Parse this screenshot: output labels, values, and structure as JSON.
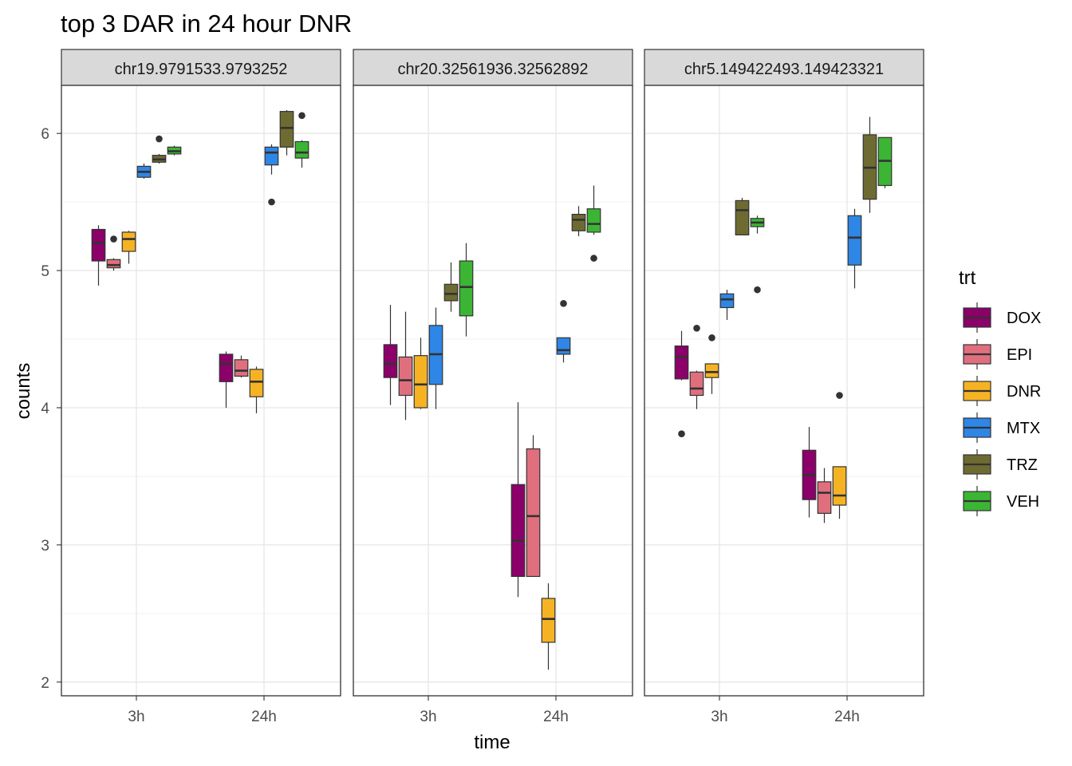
{
  "chart_data": {
    "type": "boxplot",
    "title": "top 3 DAR in 24 hour DNR",
    "xlabel": "time",
    "ylabel": "counts",
    "ylim": [
      1.9,
      6.35
    ],
    "y_ticks": [
      2,
      3,
      4,
      5,
      6
    ],
    "y_tick_labels": [
      "2",
      "3",
      "4",
      "5",
      "6"
    ],
    "categories": [
      "3h",
      "24h"
    ],
    "legend": {
      "title": "trt",
      "position": "right",
      "entries": [
        "DOX",
        "EPI",
        "DNR",
        "MTX",
        "TRZ",
        "VEH"
      ]
    },
    "colors": {
      "DOX": "#8b0069",
      "EPI": "#e06f7e",
      "DNR": "#f5b324",
      "MTX": "#2e86e6",
      "TRZ": "#6e6b32",
      "VEH": "#3cb534"
    },
    "grid": true,
    "facets": [
      {
        "label": "chr19.9791533.9793252",
        "groups": [
          {
            "time": "3h",
            "trt": "DOX",
            "stats": [
              4.89,
              5.07,
              5.2,
              5.3,
              5.33
            ],
            "outliers": []
          },
          {
            "time": "3h",
            "trt": "EPI",
            "stats": [
              5.0,
              5.02,
              5.04,
              5.08,
              5.09
            ],
            "outliers": [
              5.23
            ]
          },
          {
            "time": "3h",
            "trt": "DNR",
            "stats": [
              5.05,
              5.14,
              5.23,
              5.28,
              5.29
            ],
            "outliers": []
          },
          {
            "time": "3h",
            "trt": "MTX",
            "stats": [
              5.67,
              5.68,
              5.72,
              5.76,
              5.78
            ],
            "outliers": []
          },
          {
            "time": "3h",
            "trt": "TRZ",
            "stats": [
              5.78,
              5.79,
              5.81,
              5.84,
              5.85
            ],
            "outliers": [
              5.96
            ]
          },
          {
            "time": "3h",
            "trt": "VEH",
            "stats": [
              5.84,
              5.85,
              5.87,
              5.9,
              5.91
            ],
            "outliers": []
          },
          {
            "time": "24h",
            "trt": "DOX",
            "stats": [
              4.0,
              4.19,
              4.32,
              4.39,
              4.41
            ],
            "outliers": []
          },
          {
            "time": "24h",
            "trt": "EPI",
            "stats": [
              4.22,
              4.23,
              4.27,
              4.35,
              4.38
            ],
            "outliers": []
          },
          {
            "time": "24h",
            "trt": "DNR",
            "stats": [
              3.96,
              4.08,
              4.19,
              4.28,
              4.3
            ],
            "outliers": []
          },
          {
            "time": "24h",
            "trt": "MTX",
            "stats": [
              5.7,
              5.77,
              5.86,
              5.9,
              5.92
            ],
            "outliers": [
              5.5
            ]
          },
          {
            "time": "24h",
            "trt": "TRZ",
            "stats": [
              5.84,
              5.9,
              6.04,
              6.16,
              6.17
            ],
            "outliers": []
          },
          {
            "time": "24h",
            "trt": "VEH",
            "stats": [
              5.75,
              5.82,
              5.86,
              5.94,
              5.95
            ],
            "outliers": [
              6.13
            ]
          }
        ]
      },
      {
        "label": "chr20.32561936.32562892",
        "groups": [
          {
            "time": "3h",
            "trt": "DOX",
            "stats": [
              4.02,
              4.22,
              4.32,
              4.46,
              4.75
            ],
            "outliers": []
          },
          {
            "time": "3h",
            "trt": "EPI",
            "stats": [
              3.91,
              4.09,
              4.2,
              4.37,
              4.7
            ],
            "outliers": []
          },
          {
            "time": "3h",
            "trt": "DNR",
            "stats": [
              3.99,
              4.0,
              4.17,
              4.38,
              4.51
            ],
            "outliers": []
          },
          {
            "time": "3h",
            "trt": "MTX",
            "stats": [
              3.99,
              4.17,
              4.39,
              4.6,
              4.73
            ],
            "outliers": []
          },
          {
            "time": "3h",
            "trt": "TRZ",
            "stats": [
              4.7,
              4.78,
              4.83,
              4.9,
              5.06
            ],
            "outliers": []
          },
          {
            "time": "3h",
            "trt": "VEH",
            "stats": [
              4.52,
              4.67,
              4.88,
              5.07,
              5.2
            ],
            "outliers": []
          },
          {
            "time": "24h",
            "trt": "DOX",
            "stats": [
              2.62,
              2.77,
              3.03,
              3.44,
              4.04
            ],
            "outliers": []
          },
          {
            "time": "24h",
            "trt": "EPI",
            "stats": [
              2.77,
              2.77,
              3.21,
              3.7,
              3.8
            ],
            "outliers": []
          },
          {
            "time": "24h",
            "trt": "DNR",
            "stats": [
              2.09,
              2.29,
              2.46,
              2.61,
              2.72
            ],
            "outliers": []
          },
          {
            "time": "24h",
            "trt": "MTX",
            "stats": [
              4.33,
              4.39,
              4.42,
              4.51,
              4.51
            ],
            "outliers": [
              4.76
            ]
          },
          {
            "time": "24h",
            "trt": "TRZ",
            "stats": [
              5.25,
              5.29,
              5.37,
              5.41,
              5.47
            ],
            "outliers": []
          },
          {
            "time": "24h",
            "trt": "VEH",
            "stats": [
              5.26,
              5.28,
              5.34,
              5.45,
              5.62
            ],
            "outliers": [
              5.09
            ]
          }
        ]
      },
      {
        "label": "chr5.149422493.149423321",
        "groups": [
          {
            "time": "3h",
            "trt": "DOX",
            "stats": [
              4.2,
              4.21,
              4.37,
              4.45,
              4.56
            ],
            "outliers": [
              3.81
            ]
          },
          {
            "time": "3h",
            "trt": "EPI",
            "stats": [
              3.99,
              4.09,
              4.14,
              4.26,
              4.27
            ],
            "outliers": [
              4.58
            ]
          },
          {
            "time": "3h",
            "trt": "DNR",
            "stats": [
              4.1,
              4.22,
              4.26,
              4.32,
              4.32
            ],
            "outliers": [
              4.51
            ]
          },
          {
            "time": "3h",
            "trt": "MTX",
            "stats": [
              4.64,
              4.73,
              4.79,
              4.83,
              4.86
            ],
            "outliers": []
          },
          {
            "time": "3h",
            "trt": "TRZ",
            "stats": [
              5.26,
              5.26,
              5.44,
              5.51,
              5.53
            ],
            "outliers": []
          },
          {
            "time": "3h",
            "trt": "VEH",
            "stats": [
              5.27,
              5.32,
              5.35,
              5.38,
              5.4
            ],
            "outliers": [
              4.86
            ]
          },
          {
            "time": "24h",
            "trt": "DOX",
            "stats": [
              3.2,
              3.33,
              3.51,
              3.69,
              3.86
            ],
            "outliers": []
          },
          {
            "time": "24h",
            "trt": "EPI",
            "stats": [
              3.16,
              3.23,
              3.38,
              3.46,
              3.56
            ],
            "outliers": []
          },
          {
            "time": "24h",
            "trt": "DNR",
            "stats": [
              3.19,
              3.29,
              3.36,
              3.57,
              3.57
            ],
            "outliers": [
              4.09
            ]
          },
          {
            "time": "24h",
            "trt": "MTX",
            "stats": [
              4.87,
              5.04,
              5.24,
              5.4,
              5.45
            ],
            "outliers": []
          },
          {
            "time": "24h",
            "trt": "TRZ",
            "stats": [
              5.42,
              5.52,
              5.75,
              5.99,
              6.12
            ],
            "outliers": []
          },
          {
            "time": "24h",
            "trt": "VEH",
            "stats": [
              5.6,
              5.62,
              5.8,
              5.97,
              5.97
            ],
            "outliers": []
          }
        ]
      }
    ]
  }
}
